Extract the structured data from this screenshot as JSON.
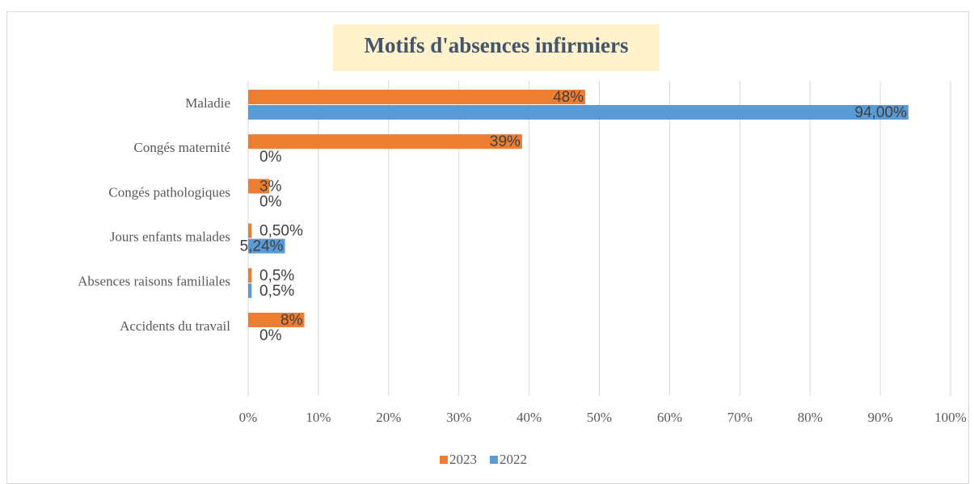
{
  "chart_data": {
    "type": "bar",
    "orientation": "horizontal",
    "title": "Motifs d'absences infirmiers",
    "categories": [
      "Maladie",
      "Congés maternité",
      "Congés pathologiques",
      "Jours enfants malades",
      "Absences raisons familiales",
      "Accidents du travail"
    ],
    "series": [
      {
        "name": "2023",
        "color": "#ed7d31",
        "values": [
          48,
          39,
          3,
          0.5,
          0.5,
          8
        ],
        "value_labels": [
          "48%",
          "39%",
          "3%",
          "0,50%",
          "0,5%",
          "8%"
        ]
      },
      {
        "name": "2022",
        "color": "#5b9bd5",
        "values": [
          94,
          0,
          0,
          5.24,
          0.5,
          0
        ],
        "value_labels": [
          "94,00%",
          "0%",
          "0%",
          "5,24%",
          "0,5%",
          "0%"
        ]
      }
    ],
    "xlim": [
      0,
      100
    ],
    "xticks": [
      {
        "value": 0,
        "label": "0%"
      },
      {
        "value": 10,
        "label": "10%"
      },
      {
        "value": 20,
        "label": "20%"
      },
      {
        "value": 30,
        "label": "30%"
      },
      {
        "value": 40,
        "label": "40%"
      },
      {
        "value": 50,
        "label": "50%"
      },
      {
        "value": 60,
        "label": "60%"
      },
      {
        "value": 70,
        "label": "70%"
      },
      {
        "value": 80,
        "label": "80%"
      },
      {
        "value": 90,
        "label": "90%"
      },
      {
        "value": 100,
        "label": "100%"
      }
    ],
    "grid": true,
    "legend": "bottom"
  }
}
